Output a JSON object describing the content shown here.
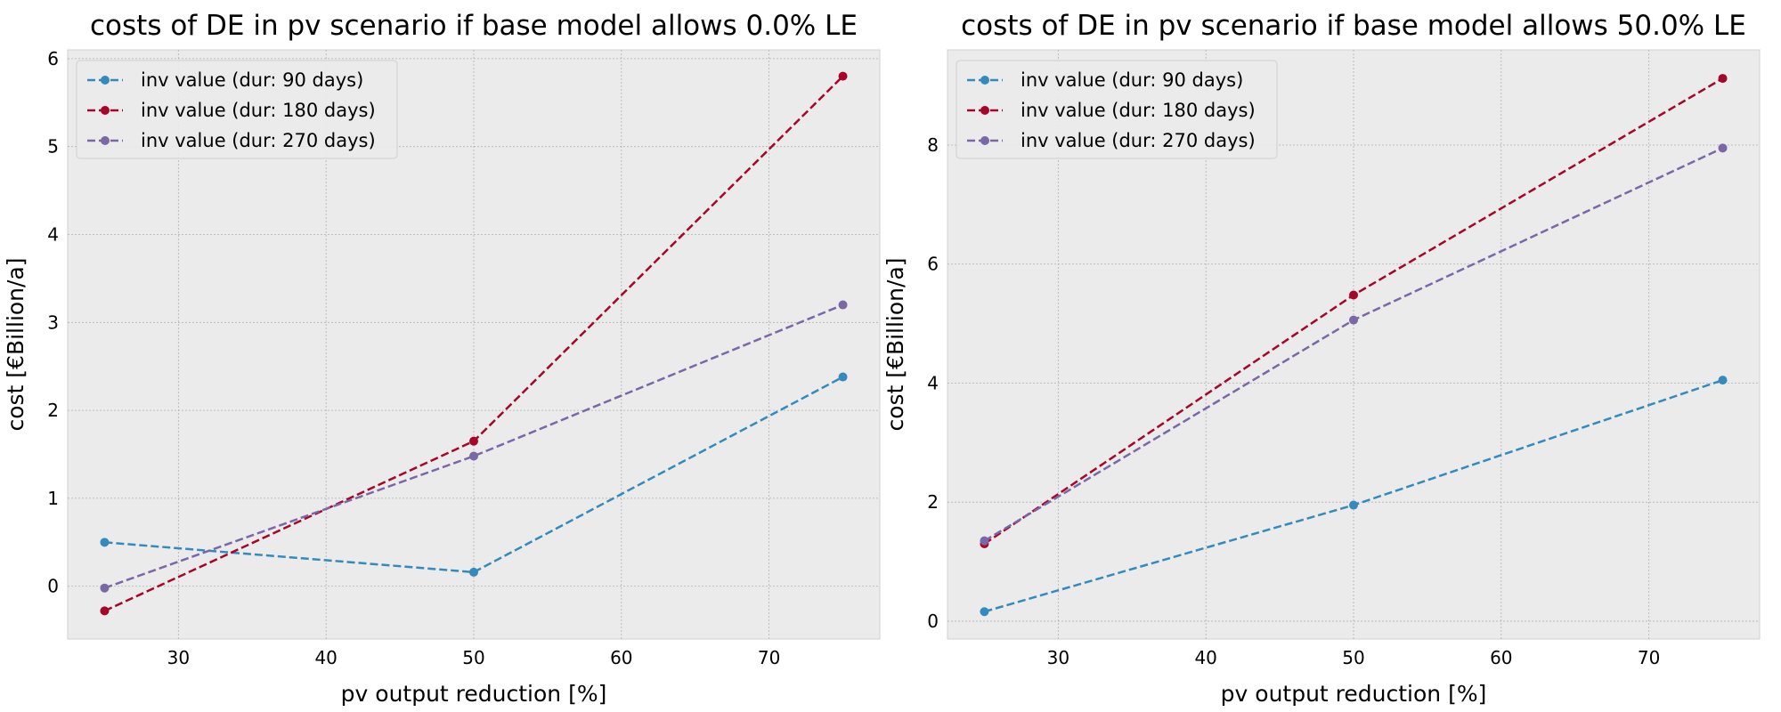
{
  "colors": {
    "background": "#ebebeb",
    "grid": "#b0b0b0",
    "series": [
      "#348abd",
      "#a60628",
      "#7a68a6"
    ]
  },
  "chart_data": [
    {
      "type": "line",
      "title": "costs of DE in pv scenario if base model allows 0.0% LE",
      "xlabel": "pv output reduction [%]",
      "ylabel": "cost [€Billion/a]",
      "xlim": [
        22.5,
        77.5
      ],
      "ylim": [
        -0.6,
        6.1
      ],
      "xticks": [
        30,
        40,
        50,
        60,
        70
      ],
      "yticks": [
        0,
        1,
        2,
        3,
        4,
        5,
        6
      ],
      "grid": true,
      "legend_position": "top-left",
      "x": [
        25,
        50,
        75
      ],
      "series": [
        {
          "name": "inv value (dur: 90 days)",
          "values": [
            0.5,
            0.16,
            2.38
          ]
        },
        {
          "name": "inv value (dur: 180 days)",
          "values": [
            -0.28,
            1.65,
            5.8
          ]
        },
        {
          "name": "inv value (dur: 270 days)",
          "values": [
            -0.02,
            1.48,
            3.2
          ]
        }
      ]
    },
    {
      "type": "line",
      "title": "costs of DE in pv scenario if base model allows 50.0% LE",
      "xlabel": "pv output reduction [%]",
      "ylabel": "cost [€Billion/a]",
      "xlim": [
        22.5,
        77.5
      ],
      "ylim": [
        -0.3,
        9.6
      ],
      "xticks": [
        30,
        40,
        50,
        60,
        70
      ],
      "yticks": [
        0,
        2,
        4,
        6,
        8
      ],
      "grid": true,
      "legend_position": "top-left",
      "x": [
        25,
        50,
        75
      ],
      "series": [
        {
          "name": "inv value (dur: 90 days)",
          "values": [
            0.16,
            1.95,
            4.05
          ]
        },
        {
          "name": "inv value (dur: 180 days)",
          "values": [
            1.3,
            5.48,
            9.12
          ]
        },
        {
          "name": "inv value (dur: 270 days)",
          "values": [
            1.35,
            5.06,
            7.95
          ]
        }
      ]
    }
  ]
}
